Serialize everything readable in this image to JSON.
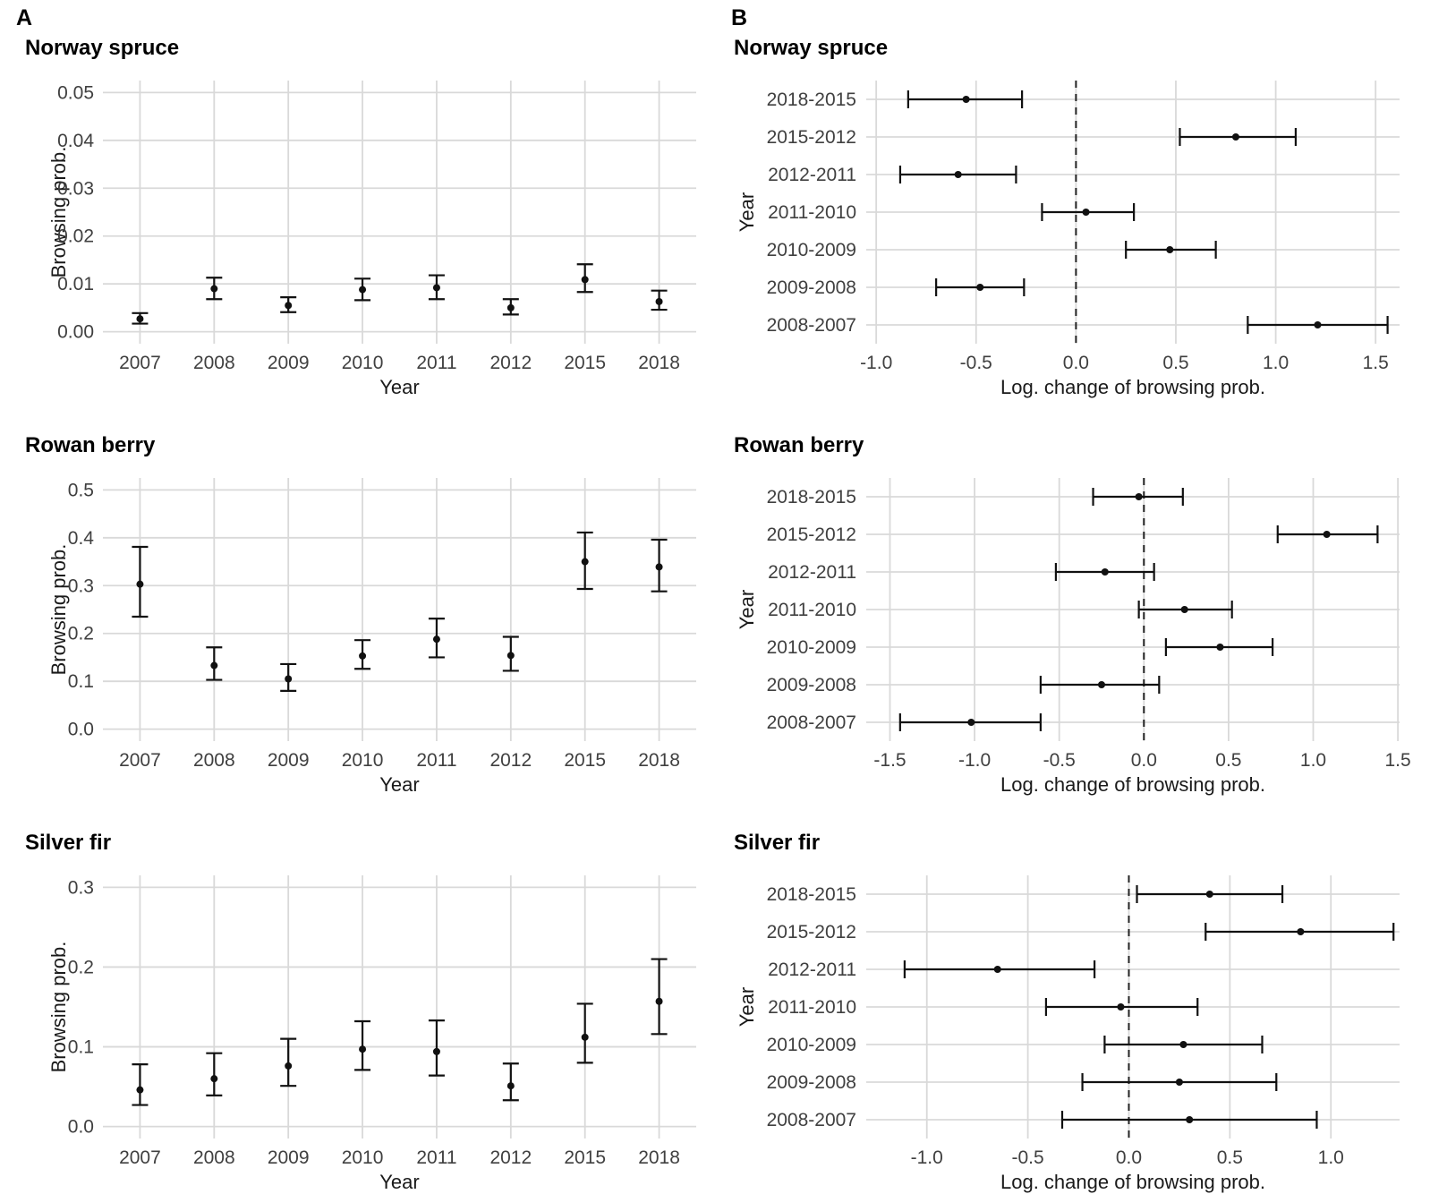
{
  "figure": {
    "panel_labels": [
      "A",
      "B"
    ],
    "background": "#ffffff",
    "colors": {
      "point": "#111111",
      "errorbar": "#111111",
      "gridline": "#d9d9d9",
      "tick_text": "#404040",
      "axis_title_text": "#1a1a1a",
      "title_text": "#000000",
      "refline": "#222222"
    }
  },
  "chart_data": [
    {
      "id": "a1-norway-spruce",
      "type": "scatter",
      "mark": "pointrange",
      "orientation": "vertical",
      "title": "Norway spruce",
      "xlabel": "Year",
      "ylabel": "Browsing prob.",
      "categories": [
        "2007",
        "2008",
        "2009",
        "2010",
        "2011",
        "2012",
        "2015",
        "2018"
      ],
      "estimates": [
        0.0027,
        0.009,
        0.0055,
        0.0088,
        0.0092,
        0.005,
        0.0109,
        0.0063
      ],
      "ci_low": [
        0.0017,
        0.0068,
        0.0041,
        0.0066,
        0.0068,
        0.0036,
        0.0083,
        0.0046
      ],
      "ci_high": [
        0.0039,
        0.0113,
        0.0072,
        0.0111,
        0.0118,
        0.0068,
        0.0141,
        0.0086
      ],
      "ticks": [
        0,
        0.01,
        0.02,
        0.03,
        0.04,
        0.05
      ],
      "tick_labels": [
        "0.00",
        "0.01",
        "0.02",
        "0.03",
        "0.04",
        "0.05"
      ],
      "lim": [
        -0.0025,
        0.0525
      ],
      "grid": true
    },
    {
      "id": "b1-norway-spruce",
      "type": "scatter",
      "mark": "pointrange",
      "orientation": "horizontal",
      "title": "Norway spruce",
      "xlabel": "Log. change of browsing prob.",
      "ylabel": "Year",
      "categories": [
        "2018-2015",
        "2015-2012",
        "2012-2011",
        "2011-2010",
        "2010-2009",
        "2009-2008",
        "2008-2007"
      ],
      "estimates": [
        -0.55,
        0.8,
        -0.59,
        0.05,
        0.47,
        -0.48,
        1.21
      ],
      "ci_low": [
        -0.84,
        0.52,
        -0.88,
        -0.17,
        0.25,
        -0.7,
        0.86
      ],
      "ci_high": [
        -0.27,
        1.1,
        -0.3,
        0.29,
        0.7,
        -0.26,
        1.56
      ],
      "ticks": [
        -1.0,
        -0.5,
        0,
        0.5,
        1.0,
        1.5
      ],
      "tick_labels": [
        "-1.0",
        "-0.5",
        "0.0",
        "0.5",
        "1.0",
        "1.5"
      ],
      "lim": [
        -1.05,
        1.62
      ],
      "refline": 0,
      "grid": true
    },
    {
      "id": "a2-rowan-berry",
      "type": "scatter",
      "mark": "pointrange",
      "orientation": "vertical",
      "title": "Rowan berry",
      "xlabel": "Year",
      "ylabel": "Browsing prob.",
      "categories": [
        "2007",
        "2008",
        "2009",
        "2010",
        "2011",
        "2012",
        "2015",
        "2018"
      ],
      "estimates": [
        0.303,
        0.133,
        0.105,
        0.153,
        0.188,
        0.154,
        0.35,
        0.339
      ],
      "ci_low": [
        0.235,
        0.103,
        0.08,
        0.126,
        0.15,
        0.122,
        0.293,
        0.288
      ],
      "ci_high": [
        0.381,
        0.171,
        0.136,
        0.186,
        0.231,
        0.193,
        0.411,
        0.396
      ],
      "ticks": [
        0,
        0.1,
        0.2,
        0.3,
        0.4,
        0.5
      ],
      "tick_labels": [
        "0.0",
        "0.1",
        "0.2",
        "0.3",
        "0.4",
        "0.5"
      ],
      "lim": [
        -0.025,
        0.525
      ],
      "grid": true
    },
    {
      "id": "b2-rowan-berry",
      "type": "scatter",
      "mark": "pointrange",
      "orientation": "horizontal",
      "title": "Rowan berry",
      "xlabel": "Log. change of browsing prob.",
      "ylabel": "Year",
      "categories": [
        "2018-2015",
        "2015-2012",
        "2012-2011",
        "2011-2010",
        "2010-2009",
        "2009-2008",
        "2008-2007"
      ],
      "estimates": [
        -0.03,
        1.08,
        -0.23,
        0.24,
        0.45,
        -0.25,
        -1.02
      ],
      "ci_low": [
        -0.3,
        0.79,
        -0.52,
        -0.03,
        0.13,
        -0.61,
        -1.44
      ],
      "ci_high": [
        0.23,
        1.38,
        0.06,
        0.52,
        0.76,
        0.09,
        -0.61
      ],
      "ticks": [
        -1.5,
        -1.0,
        -0.5,
        0,
        0.5,
        1.0,
        1.5
      ],
      "tick_labels": [
        "-1.5",
        "-1.0",
        "-0.5",
        "0.0",
        "0.5",
        "1.0",
        "1.5"
      ],
      "lim": [
        -1.64,
        1.51
      ],
      "refline": 0,
      "grid": true
    },
    {
      "id": "a3-silver-fir",
      "type": "scatter",
      "mark": "pointrange",
      "orientation": "vertical",
      "title": "Silver fir",
      "xlabel": "Year",
      "ylabel": "Browsing prob.",
      "categories": [
        "2007",
        "2008",
        "2009",
        "2010",
        "2011",
        "2012",
        "2015",
        "2018"
      ],
      "estimates": [
        0.046,
        0.06,
        0.076,
        0.097,
        0.094,
        0.051,
        0.112,
        0.157
      ],
      "ci_low": [
        0.027,
        0.039,
        0.051,
        0.071,
        0.064,
        0.033,
        0.08,
        0.116
      ],
      "ci_high": [
        0.078,
        0.092,
        0.11,
        0.132,
        0.133,
        0.079,
        0.154,
        0.21
      ],
      "ticks": [
        0,
        0.1,
        0.2,
        0.3
      ],
      "tick_labels": [
        "0.0",
        "0.1",
        "0.2",
        "0.3"
      ],
      "lim": [
        -0.015,
        0.315
      ],
      "grid": true
    },
    {
      "id": "b3-silver-fir",
      "type": "scatter",
      "mark": "pointrange",
      "orientation": "horizontal",
      "title": "Silver fir",
      "xlabel": "Log. change of browsing prob.",
      "ylabel": "Year",
      "categories": [
        "2018-2015",
        "2015-2012",
        "2012-2011",
        "2011-2010",
        "2010-2009",
        "2009-2008",
        "2008-2007"
      ],
      "estimates": [
        0.4,
        0.85,
        -0.65,
        -0.04,
        0.27,
        0.25,
        0.3
      ],
      "ci_low": [
        0.04,
        0.38,
        -1.11,
        -0.41,
        -0.12,
        -0.23,
        -0.33
      ],
      "ci_high": [
        0.76,
        1.31,
        -0.17,
        0.34,
        0.66,
        0.73,
        0.93
      ],
      "ticks": [
        -1.0,
        -0.5,
        0,
        0.5,
        1.0
      ],
      "tick_labels": [
        "-1.0",
        "-0.5",
        "0.0",
        "0.5",
        "1.0"
      ],
      "lim": [
        -1.3,
        1.34
      ],
      "refline": 0,
      "grid": true
    }
  ]
}
